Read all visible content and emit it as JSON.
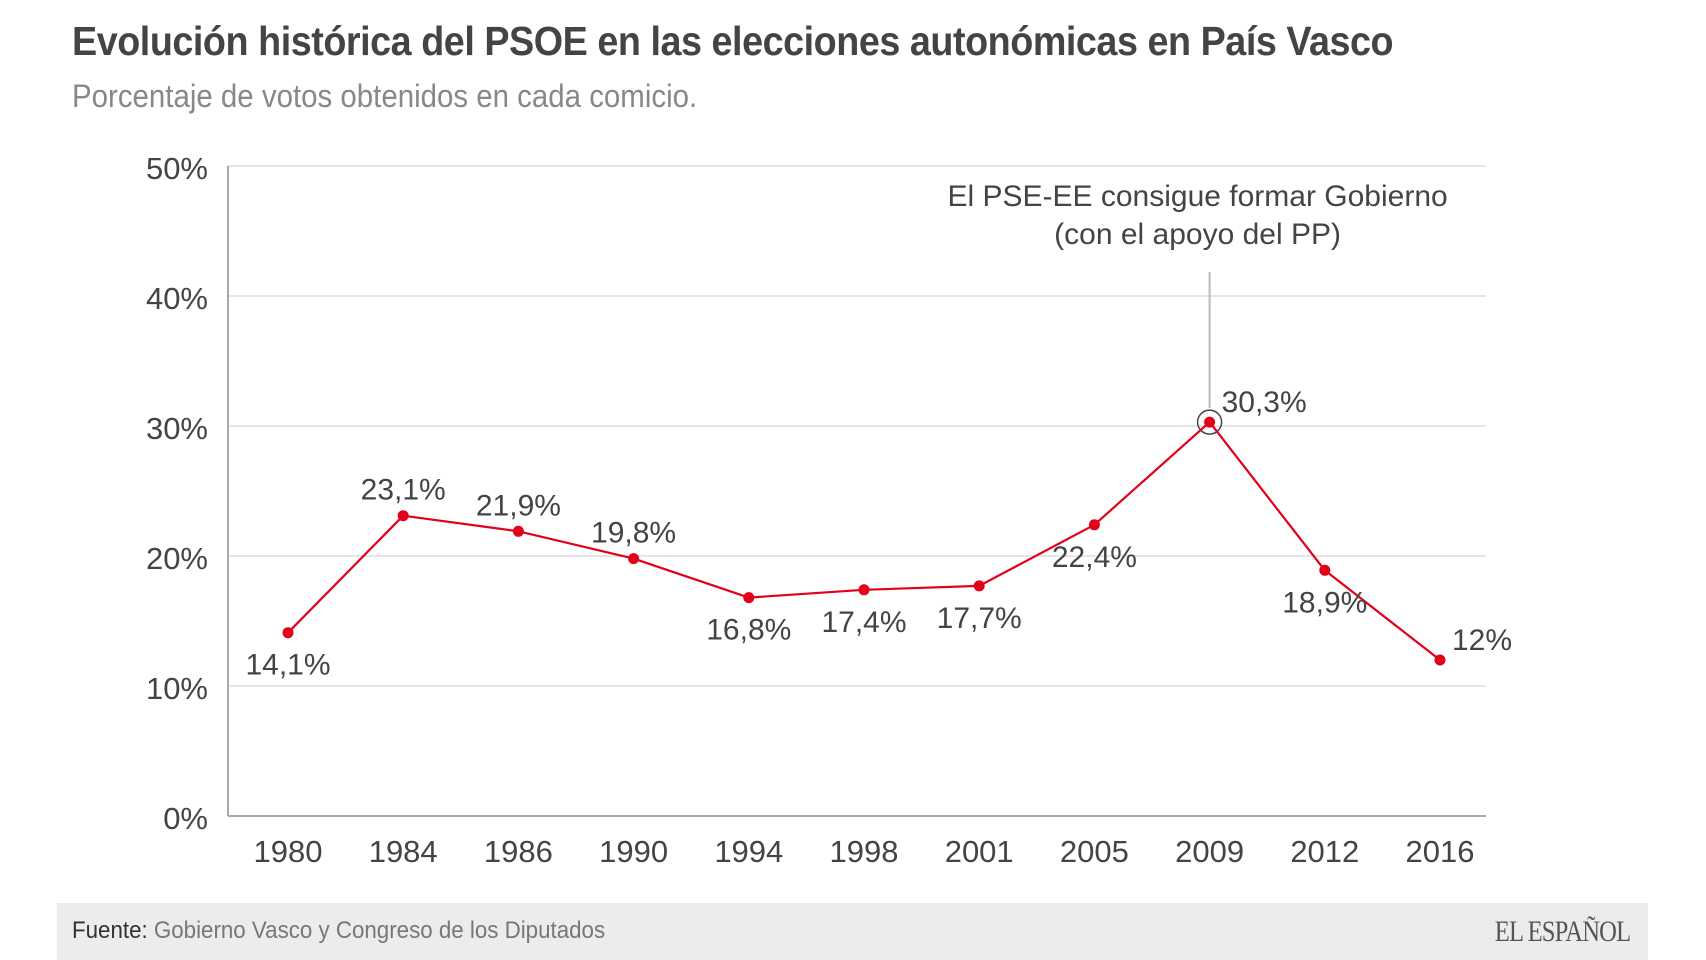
{
  "header": {
    "title": "Evolución histórica del PSOE en las elecciones autonómicas en País Vasco",
    "subtitle": "Porcentaje de votos obtenidos en cada comicio."
  },
  "chart_data": {
    "type": "line",
    "title": "Evolución histórica del PSOE en las elecciones autonómicas en País Vasco",
    "subtitle": "Porcentaje de votos obtenidos en cada comicio.",
    "xlabel": "",
    "ylabel": "",
    "categories": [
      "1980",
      "1984",
      "1986",
      "1990",
      "1994",
      "1998",
      "2001",
      "2005",
      "2009",
      "2012",
      "2016"
    ],
    "series": [
      {
        "name": "PSOE",
        "color": "#e3001b",
        "values": [
          14.1,
          23.1,
          21.9,
          19.8,
          16.8,
          17.4,
          17.7,
          22.4,
          30.3,
          18.9,
          12.0
        ],
        "labels": [
          "14,1%",
          "23,1%",
          "21,9%",
          "19,8%",
          "16,8%",
          "17,4%",
          "17,7%",
          "22,4%",
          "30,3%",
          "18,9%",
          "12%"
        ],
        "label_positions": [
          "below",
          "above",
          "above",
          "above",
          "below",
          "below",
          "below",
          "below",
          "above-right",
          "below",
          "above-right"
        ]
      }
    ],
    "ylim": [
      0,
      50
    ],
    "yticks": [
      0,
      10,
      20,
      30,
      40,
      50
    ],
    "ytick_labels": [
      "0%",
      "10%",
      "20%",
      "30%",
      "40%",
      "50%"
    ],
    "grid": true,
    "legend": "none",
    "annotations": [
      {
        "category": "2009",
        "value": 30.3,
        "lines": [
          "El PSE-EE consigue formar Gobierno",
          "(con el apoyo del PP)"
        ]
      }
    ]
  },
  "footer": {
    "source_label": "Fuente:",
    "source_text": "Gobierno Vasco y Congreso de los Diputados",
    "logo": "EL ESPAÑOL"
  },
  "colors": {
    "line": "#e3001b",
    "text": "#444444",
    "subtitle": "#888888",
    "grid": "#dddddd",
    "axis": "#aaaaaa",
    "footer_bg": "#ececec"
  }
}
